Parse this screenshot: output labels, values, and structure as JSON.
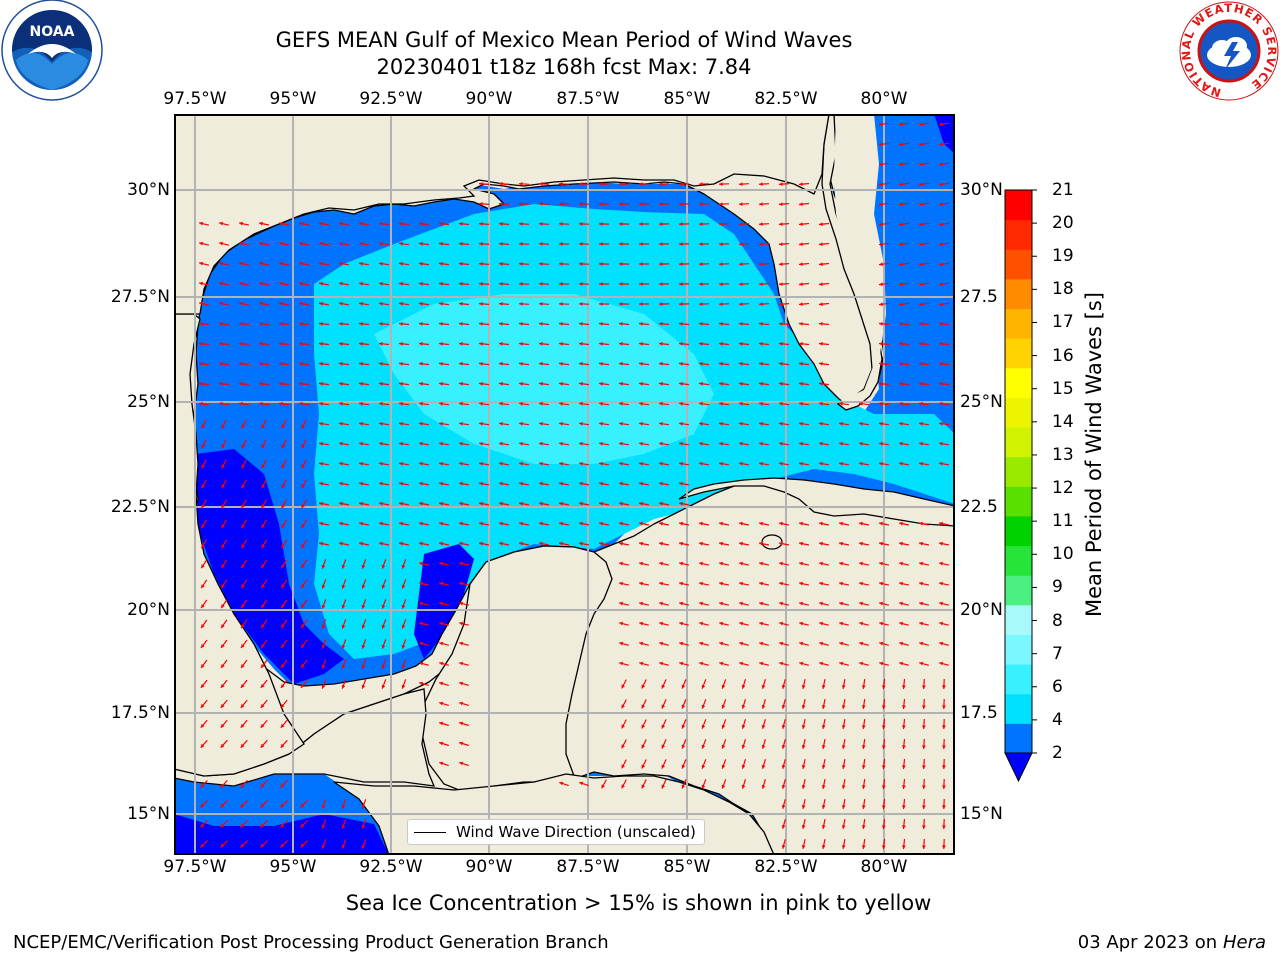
{
  "header": {
    "title_line1": "GEFS MEAN Gulf of Mexico Mean Period of Wind Waves",
    "title_line2": "20230401 t18z 168h fcst   Max: 7.84"
  },
  "logos": {
    "left": {
      "name": "NOAA",
      "ring_text": "NATIONAL OCEANIC AND ATMOSPHERIC ADMINISTRATION · U.S. DEPARTMENT OF COMMERCE"
    },
    "right": {
      "name": "NATIONAL WEATHER SERVICE"
    }
  },
  "map": {
    "lon_ticks": [
      "97.5°W",
      "95°W",
      "92.5°W",
      "90°W",
      "87.5°W",
      "85°W",
      "82.5°W",
      "80°W"
    ],
    "lat_ticks_left": [
      "30°N",
      "27.5°N",
      "25°N",
      "22.5°N",
      "20°N",
      "17.5°N",
      "15°N"
    ],
    "lat_ticks_right": [
      "30°N",
      "27.5",
      "25°N",
      "22.5",
      "20°N",
      "17.5",
      "15°N"
    ],
    "legend_label": "Wind Wave Direction (unscaled)",
    "colors": {
      "land": "#efecdc",
      "coast": "#000000",
      "grid": "#b3b3b3",
      "arrow": "#ff0000"
    }
  },
  "colorbar": {
    "label": "Mean Period of Wind Waves [s]",
    "ticks": [
      "2",
      "4",
      "6",
      "7",
      "8",
      "9",
      "10",
      "11",
      "12",
      "13",
      "14",
      "15",
      "16",
      "17",
      "18",
      "19",
      "20",
      "21"
    ],
    "colors": [
      "#0073ff",
      "#00e1ff",
      "#38f0ff",
      "#7af7ff",
      "#a8fafa",
      "#4cf080",
      "#26e43a",
      "#00d200",
      "#5ae000",
      "#9aea00",
      "#d2f300",
      "#ecf400",
      "#ffff00",
      "#ffd200",
      "#ffb400",
      "#ff8c00",
      "#ff5000",
      "#ff2800",
      "#ff0000"
    ],
    "under_color": "#0000ff"
  },
  "caption": "Sea Ice Concentration > 15% is shown in pink to yellow",
  "footer": {
    "left": "NCEP/EMC/Verification Post Processing Product Generation Branch",
    "date": "03 Apr 2023",
    "on": "on",
    "host": "Hera"
  }
}
